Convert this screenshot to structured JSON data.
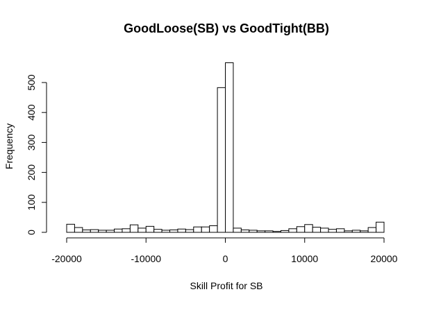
{
  "chart_data": {
    "type": "bar",
    "subtype": "histogram",
    "title": "GoodLoose(SB) vs GoodTight(BB)",
    "xlabel": "Skill Profit for SB",
    "ylabel": "Frequency",
    "xlim": [
      -20000,
      20000
    ],
    "ylim": [
      0,
      570
    ],
    "x_ticks": [
      -20000,
      -10000,
      0,
      10000,
      20000
    ],
    "x_tick_labels": [
      "-20000",
      "-10000",
      "0",
      "10000",
      "20000"
    ],
    "y_ticks": [
      0,
      100,
      200,
      300,
      400,
      500
    ],
    "y_tick_labels": [
      "0",
      "100",
      "200",
      "300",
      "400",
      "500"
    ],
    "bin_edges": [
      -20000,
      -19000,
      -18000,
      -17000,
      -16000,
      -15000,
      -14000,
      -13000,
      -12000,
      -11000,
      -10000,
      -9000,
      -8000,
      -7000,
      -6000,
      -5000,
      -4000,
      -3000,
      -2000,
      -1000,
      0,
      1000,
      2000,
      3000,
      4000,
      5000,
      6000,
      7000,
      8000,
      9000,
      10000,
      11000,
      12000,
      13000,
      14000,
      15000,
      16000,
      17000,
      18000,
      19000,
      20000
    ],
    "values": [
      27,
      16,
      8,
      9,
      7,
      7,
      11,
      12,
      25,
      14,
      20,
      10,
      7,
      8,
      11,
      9,
      18,
      18,
      22,
      483,
      566,
      14,
      8,
      7,
      5,
      5,
      3,
      6,
      12,
      19,
      26,
      17,
      14,
      10,
      12,
      5,
      7,
      5,
      16,
      34
    ],
    "grid": false,
    "bar_fill": "#ffffff",
    "bar_stroke": "#000000"
  }
}
